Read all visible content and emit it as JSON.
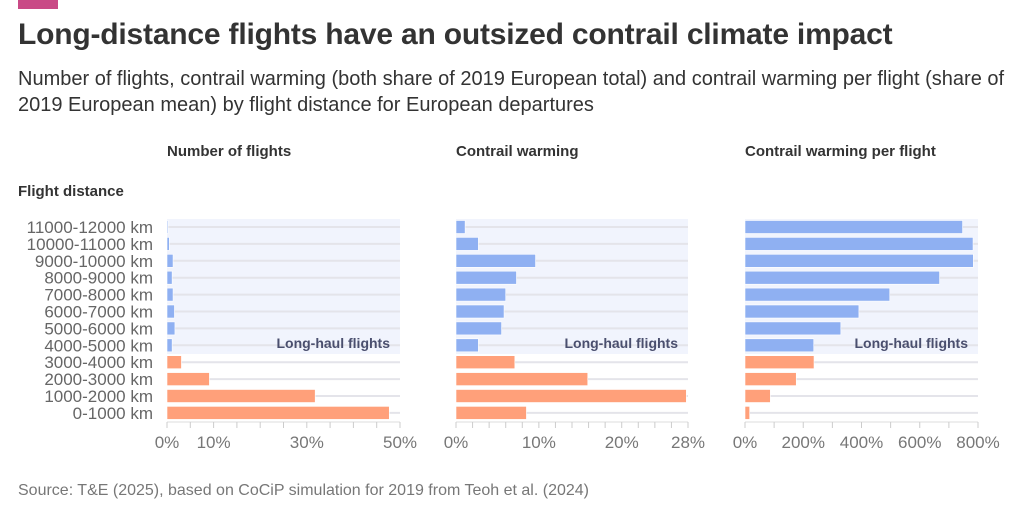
{
  "title": "Long-distance flights have an outsized contrail climate impact",
  "subtitle": "Number of flights, contrail warming (both share of 2019 European total) and contrail warming per flight (share of 2019 European mean) by flight distance for European departures",
  "source": "Source: T&E (2025), based on CoCiP simulation for 2019 from Teoh et al. (2024)",
  "colors": {
    "brand": "#c94a86",
    "long_haul": "#8fb0f2",
    "short_medium": "#ffa07a",
    "long_haul_band": "#f1f4fd"
  },
  "chart_data": [
    {
      "type": "bar",
      "title": "Number of flights",
      "ylabel": "Flight distance",
      "categories": [
        "11000-12000 km",
        "10000-11000 km",
        "9000-10000 km",
        "8000-9000 km",
        "7000-8000 km",
        "6000-7000 km",
        "5000-6000 km",
        "4000-5000 km",
        "3000-4000 km",
        "2000-3000 km",
        "1000-2000 km",
        "0-1000 km"
      ],
      "values": [
        0.2,
        0.5,
        1.3,
        1.1,
        1.3,
        1.6,
        1.7,
        1.1,
        3.1,
        9.1,
        31.8,
        47.7
      ],
      "unit": "%",
      "xlim": [
        0,
        50
      ],
      "ticks": [
        0,
        10,
        30,
        50
      ],
      "tick_labels": [
        "0%",
        "10%",
        "30%",
        "50%"
      ],
      "annotation": "Long-haul flights"
    },
    {
      "type": "bar",
      "title": "Contrail warming",
      "categories": [
        "11000-12000 km",
        "10000-11000 km",
        "9000-10000 km",
        "8000-9000 km",
        "7000-8000 km",
        "6000-7000 km",
        "5000-6000 km",
        "4000-5000 km",
        "3000-4000 km",
        "2000-3000 km",
        "1000-2000 km",
        "0-1000 km"
      ],
      "values": [
        1.1,
        2.7,
        9.6,
        7.3,
        6.0,
        5.8,
        5.5,
        2.7,
        7.1,
        15.9,
        27.8,
        8.5
      ],
      "unit": "%",
      "xlim": [
        0,
        28
      ],
      "ticks": [
        0,
        10,
        20,
        28
      ],
      "tick_labels": [
        "0%",
        "10%",
        "20%",
        "28%"
      ],
      "annotation": "Long-haul flights"
    },
    {
      "type": "bar",
      "title": "Contrail warming per flight",
      "categories": [
        "11000-12000 km",
        "10000-11000 km",
        "9000-10000 km",
        "8000-9000 km",
        "7000-8000 km",
        "6000-7000 km",
        "5000-6000 km",
        "4000-5000 km",
        "3000-4000 km",
        "2000-3000 km",
        "1000-2000 km",
        "0-1000 km"
      ],
      "values": [
        747,
        783,
        784,
        668,
        497,
        391,
        329,
        236,
        237,
        176,
        87,
        16
      ],
      "unit": "%",
      "xlim": [
        0,
        800
      ],
      "ticks": [
        0,
        200,
        400,
        600,
        800
      ],
      "tick_labels": [
        "0%",
        "200%",
        "400%",
        "600%",
        "800%"
      ],
      "annotation": "Long-haul flights"
    }
  ]
}
